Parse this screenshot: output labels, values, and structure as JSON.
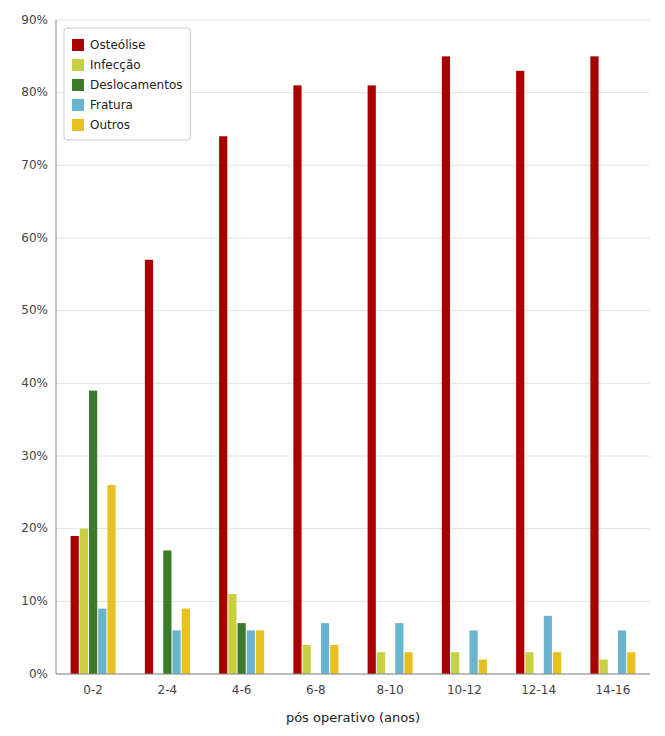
{
  "chart_data": {
    "type": "bar",
    "xlabel": "pós operativo (anos)",
    "categories": [
      "0-2",
      "2-4",
      "4-6",
      "6-8",
      "8-10",
      "10-12",
      "12-14",
      "14-16"
    ],
    "series": [
      {
        "name": "Osteólise",
        "color": "#aa0000",
        "values": [
          19,
          57,
          74,
          81,
          81,
          85,
          83,
          85
        ]
      },
      {
        "name": "Infecção",
        "color": "#c8d040",
        "values": [
          20,
          0,
          11,
          4,
          3,
          3,
          3,
          2
        ]
      },
      {
        "name": "Deslocamentos",
        "color": "#3a7a2a",
        "values": [
          39,
          17,
          7,
          0,
          0,
          0,
          0,
          0
        ]
      },
      {
        "name": "Fratura",
        "color": "#6ab4d0",
        "values": [
          9,
          6,
          6,
          7,
          7,
          6,
          8,
          6
        ]
      },
      {
        "name": "Outros",
        "color": "#e8c020",
        "values": [
          26,
          9,
          6,
          4,
          3,
          2,
          3,
          3
        ]
      }
    ],
    "ylim": [
      0,
      90
    ],
    "yticks": [
      {
        "value": 0,
        "label": "0%"
      },
      {
        "value": 10,
        "label": "10%"
      },
      {
        "value": 20,
        "label": "20%"
      },
      {
        "value": 30,
        "label": "30%"
      },
      {
        "value": 40,
        "label": "40%"
      },
      {
        "value": 50,
        "label": "50%"
      },
      {
        "value": 60,
        "label": "60%"
      },
      {
        "value": 70,
        "label": "70%"
      },
      {
        "value": 80,
        "label": "80%"
      },
      {
        "value": 90,
        "label": "90%"
      }
    ],
    "grid": true,
    "legend": "upper left"
  }
}
